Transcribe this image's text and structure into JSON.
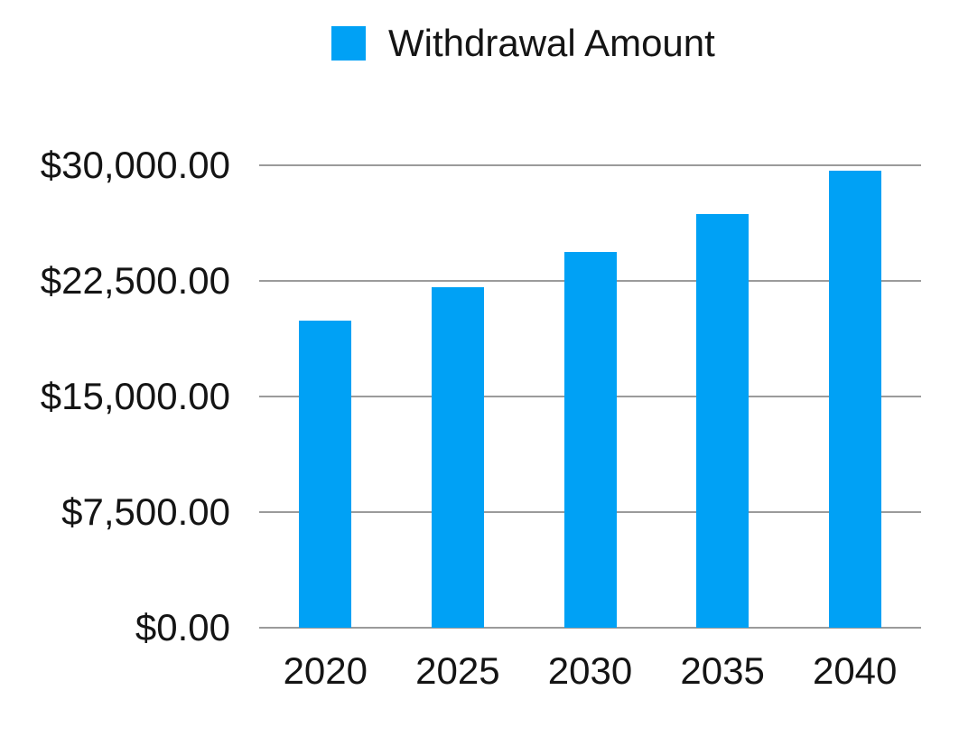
{
  "chart_data": {
    "type": "bar",
    "title": "",
    "legend_position": "top",
    "legend": [
      "Withdrawal Amount"
    ],
    "categories": [
      "2020",
      "2025",
      "2030",
      "2035",
      "2040"
    ],
    "series": [
      {
        "name": "Withdrawal Amount",
        "values": [
          19900,
          22100,
          24350,
          26850,
          29650
        ]
      }
    ],
    "xlabel": "",
    "ylabel": "",
    "ylim": [
      0,
      30000
    ],
    "yticks": [
      {
        "value": 30000,
        "label": "$30,000.00"
      },
      {
        "value": 22500,
        "label": "$22,500.00"
      },
      {
        "value": 15000,
        "label": "$15,000.00"
      },
      {
        "value": 7500,
        "label": "$7,500.00"
      },
      {
        "value": 0,
        "label": "$0.00"
      }
    ],
    "grid": true,
    "colors": {
      "bar": "#00A1F5",
      "gridline": "#9B9B9B",
      "label_text": "#141414",
      "background": "#FFFFFF"
    }
  }
}
